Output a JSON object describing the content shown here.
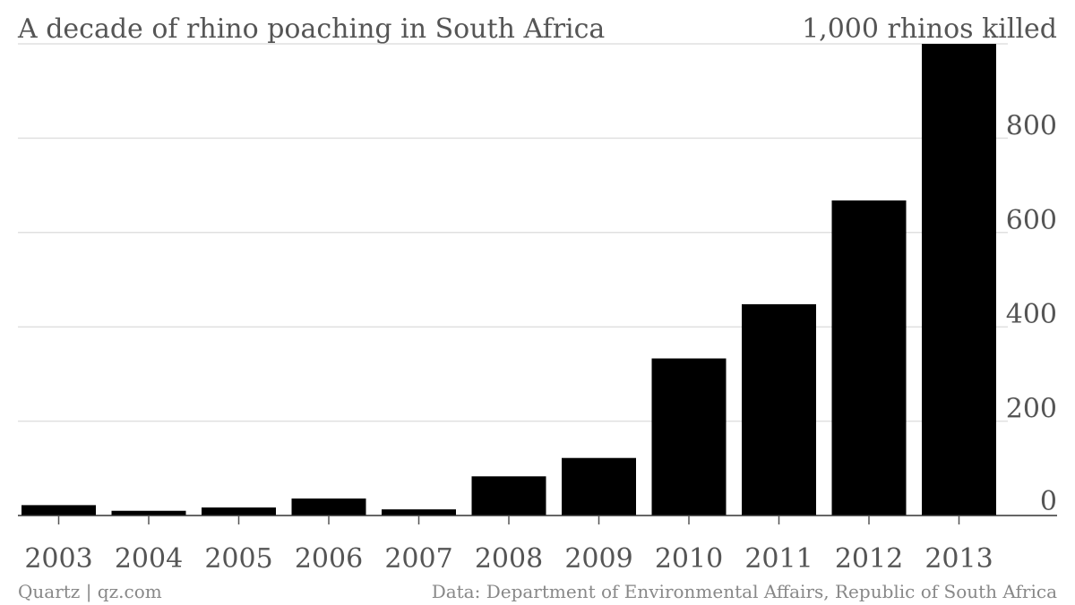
{
  "chart_data": {
    "type": "bar",
    "title": "A decade of rhino poaching in South Africa",
    "categories": [
      "2003",
      "2004",
      "2005",
      "2006",
      "2007",
      "2008",
      "2009",
      "2010",
      "2011",
      "2012",
      "2013"
    ],
    "values": [
      22,
      10,
      17,
      36,
      13,
      83,
      122,
      333,
      448,
      668,
      1004
    ],
    "ylim": [
      0,
      1000
    ],
    "yticks": [
      0,
      200,
      400,
      600,
      800,
      1000
    ],
    "ytick_labels": [
      "0",
      "200",
      "400",
      "600",
      "800",
      "1,000 rhinos killed"
    ],
    "y_axis_side": "right",
    "grid": true,
    "bar_color": "#000000",
    "grid_color": "#e0e0e0",
    "text_color": "#555555"
  },
  "footer": {
    "source_left": "Quartz | qz.com",
    "source_right": "Data: Department of Environmental Affairs, Republic of South Africa"
  }
}
